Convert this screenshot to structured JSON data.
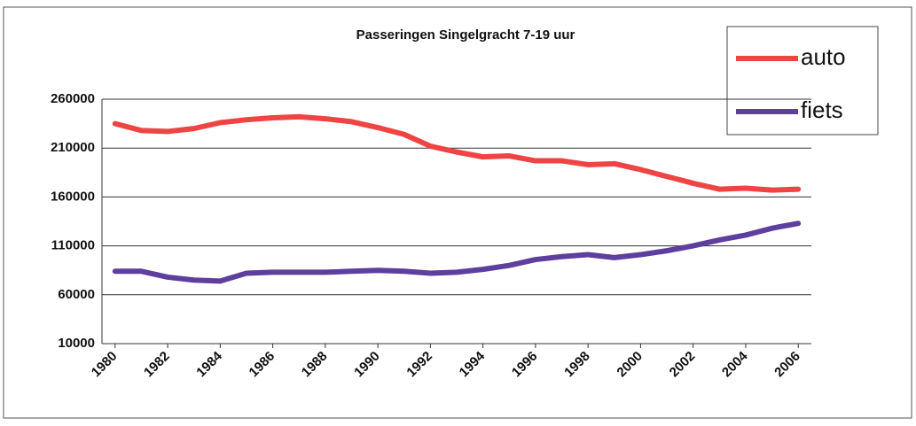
{
  "chart_data": {
    "type": "line",
    "title": "Passeringen Singelgracht 7-19 uur",
    "x": [
      1980,
      1981,
      1982,
      1983,
      1984,
      1985,
      1986,
      1987,
      1988,
      1989,
      1990,
      1991,
      1992,
      1993,
      1994,
      1995,
      1996,
      1997,
      1998,
      1999,
      2000,
      2001,
      2002,
      2003,
      2004,
      2005,
      2006
    ],
    "series": [
      {
        "name": "auto",
        "color": "#ef4444",
        "values": [
          235000,
          228000,
          227000,
          230000,
          236000,
          239000,
          241000,
          242000,
          240000,
          237000,
          231000,
          224000,
          212000,
          206000,
          201000,
          202000,
          197000,
          197000,
          193000,
          194000,
          188000,
          181000,
          174000,
          168000,
          169000,
          167000,
          168000
        ]
      },
      {
        "name": "fiets",
        "color": "#5e3f9e",
        "values": [
          84000,
          84000,
          78000,
          75000,
          74000,
          82000,
          83000,
          83000,
          83000,
          84000,
          85000,
          84000,
          82000,
          83000,
          86000,
          90000,
          96000,
          99000,
          101000,
          98000,
          101000,
          105000,
          110000,
          116000,
          121000,
          128000,
          133000
        ]
      }
    ],
    "xlim": [
      1979.5,
      2006.5
    ],
    "xticks": [
      1980,
      1982,
      1984,
      1986,
      1988,
      1990,
      1992,
      1994,
      1996,
      1998,
      2000,
      2002,
      2004,
      2006
    ],
    "ylim": [
      10000,
      260000
    ],
    "yticks": [
      10000,
      60000,
      110000,
      160000,
      210000,
      260000
    ],
    "grid": true,
    "legend": "top-right"
  }
}
